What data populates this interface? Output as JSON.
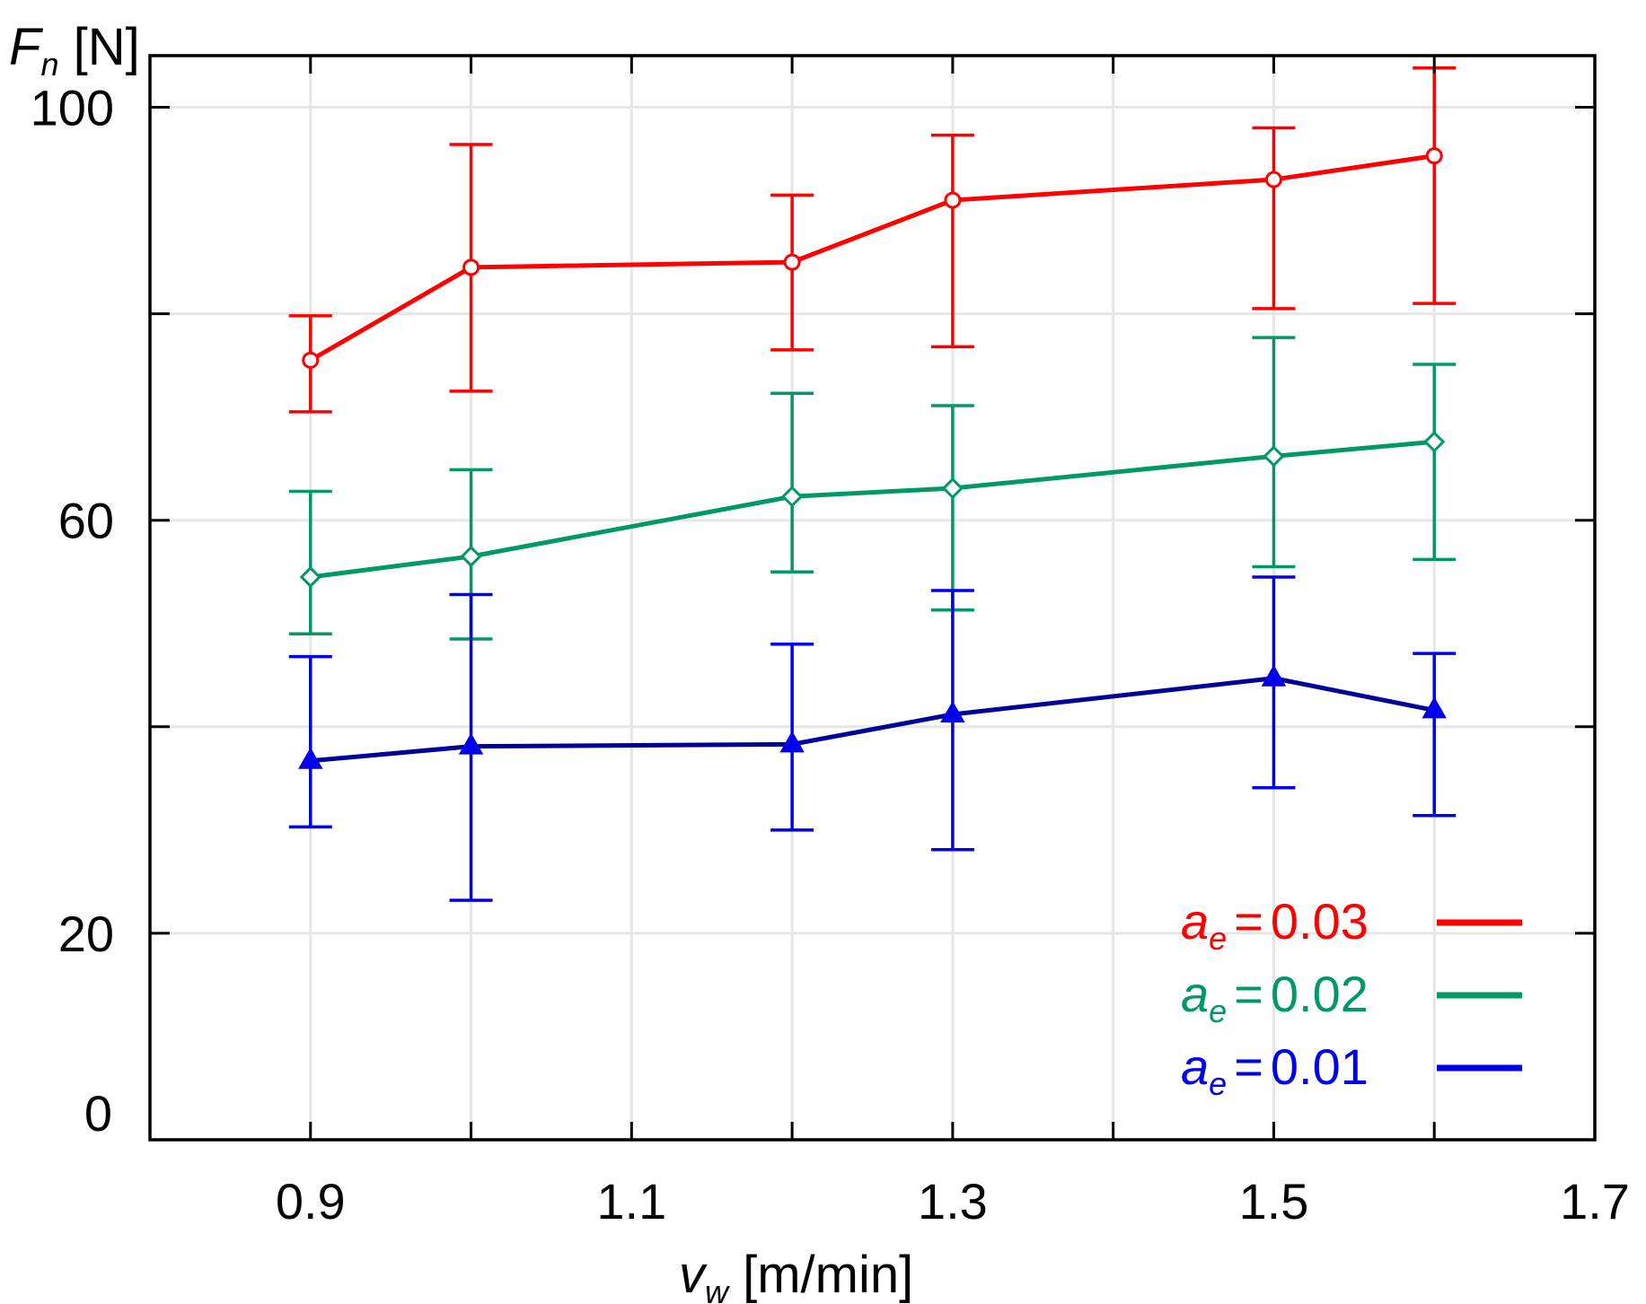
{
  "chart_data": {
    "type": "line",
    "title": "",
    "xlabel": {
      "main": "v",
      "sub": "w",
      "unit": " [m/min]"
    },
    "ylabel": {
      "main": "F",
      "sub": "n",
      "unit": " [N]"
    },
    "xlim": [
      0.8,
      1.7
    ],
    "ylim": [
      0,
      105
    ],
    "x_ticks": [
      0.9,
      1.0,
      1.1,
      1.2,
      1.3,
      1.4,
      1.5,
      1.6,
      1.7
    ],
    "x_tick_labels": [
      "0.9",
      "",
      "1.1",
      "",
      "1.3",
      "",
      "1.5",
      "",
      "1.7"
    ],
    "y_ticks": [
      20,
      40,
      60,
      80,
      100
    ],
    "y_tick_labels": [
      "20",
      "",
      "60",
      "",
      "100"
    ],
    "y_zero_label": "0",
    "grid": true,
    "legend_position": "bottom-right",
    "x": [
      0.9,
      1.0,
      1.2,
      1.3,
      1.5,
      1.6
    ],
    "series": [
      {
        "name": "a_e = 0.03",
        "legend": {
          "main": "a",
          "sub": "e",
          "eq": "=",
          "value": "0.03"
        },
        "line_color": "#ff0000",
        "err_color": "#ff0000",
        "marker": "circle",
        "values": [
          75.5,
          84.5,
          85,
          91,
          93,
          95.3
        ],
        "err_low": [
          70.5,
          72.5,
          76.5,
          76.8,
          80.5,
          81
        ],
        "err_high": [
          79.8,
          96.4,
          91.5,
          97.3,
          98,
          103.8
        ]
      },
      {
        "name": "a_e = 0.02",
        "legend": {
          "main": "a",
          "sub": "e",
          "eq": "=",
          "value": "0.02"
        },
        "line_color": "#009966",
        "err_color": "#009966",
        "marker": "diamond",
        "values": [
          54.5,
          56.5,
          62.3,
          63.1,
          66.2,
          67.6
        ],
        "err_low": [
          49,
          48.5,
          55,
          51.3,
          55.5,
          56.2
        ],
        "err_high": [
          62.8,
          64.9,
          72.3,
          71.1,
          77.7,
          75.1
        ]
      },
      {
        "name": "a_e = 0.01",
        "legend": {
          "main": "a",
          "sub": "e",
          "eq": "=",
          "value": "0.01"
        },
        "line_color": "#000099",
        "err_color": "#0000ee",
        "marker": "triangle",
        "values": [
          36.7,
          38.1,
          38.3,
          41.2,
          44.7,
          41.6
        ],
        "err_low": [
          30.3,
          23.2,
          30,
          28.1,
          34.1,
          31.4
        ],
        "err_high": [
          46.8,
          52.8,
          48,
          53.2,
          54.5,
          47.1
        ]
      }
    ]
  }
}
